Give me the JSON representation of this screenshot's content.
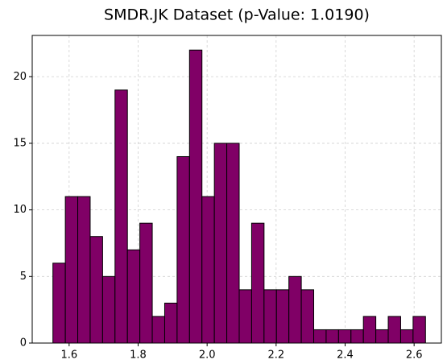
{
  "chart_data": {
    "type": "histogram",
    "title": "SMDR.JK Dataset (p-Value: 1.0190)",
    "bins": [
      1.553,
      1.589,
      1.625,
      1.661,
      1.697,
      1.733,
      1.769,
      1.805,
      1.841,
      1.877,
      1.913,
      1.949,
      1.985,
      2.021,
      2.057,
      2.093,
      2.129,
      2.165,
      2.201,
      2.237,
      2.273,
      2.309,
      2.345,
      2.381,
      2.417,
      2.453,
      2.489,
      2.525,
      2.561,
      2.597,
      2.633
    ],
    "values": [
      6,
      11,
      11,
      8,
      5,
      19,
      7,
      9,
      2,
      3,
      14,
      22,
      11,
      15,
      15,
      4,
      9,
      4,
      4,
      5,
      4,
      1,
      1,
      1,
      1,
      2,
      1,
      2,
      1,
      2
    ],
    "color": "#800066",
    "edgecolor": "#000000",
    "xlim": [
      1.493,
      2.679
    ],
    "ylim": [
      0,
      23.1
    ],
    "xticks": [
      1.6,
      1.8,
      {
        "value": 2,
        "label": "2.0"
      },
      2.2,
      2.4,
      2.6
    ],
    "yticks": [
      0,
      5,
      10,
      15,
      20
    ],
    "grid": true
  }
}
